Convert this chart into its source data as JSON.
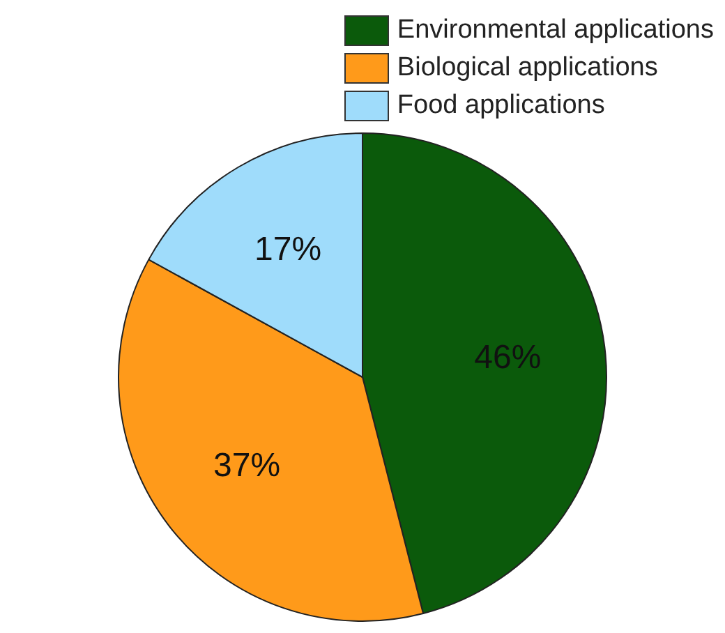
{
  "chart_data": {
    "type": "pie",
    "categories": [
      "Environmental applications",
      "Biological applications",
      "Food applications"
    ],
    "values": [
      46,
      37,
      17
    ],
    "colors": [
      "#0b5a0b",
      "#ff9a1a",
      "#9fdcfb"
    ],
    "value_labels": [
      "46%",
      "37%",
      "17%"
    ],
    "legend": "top right"
  }
}
